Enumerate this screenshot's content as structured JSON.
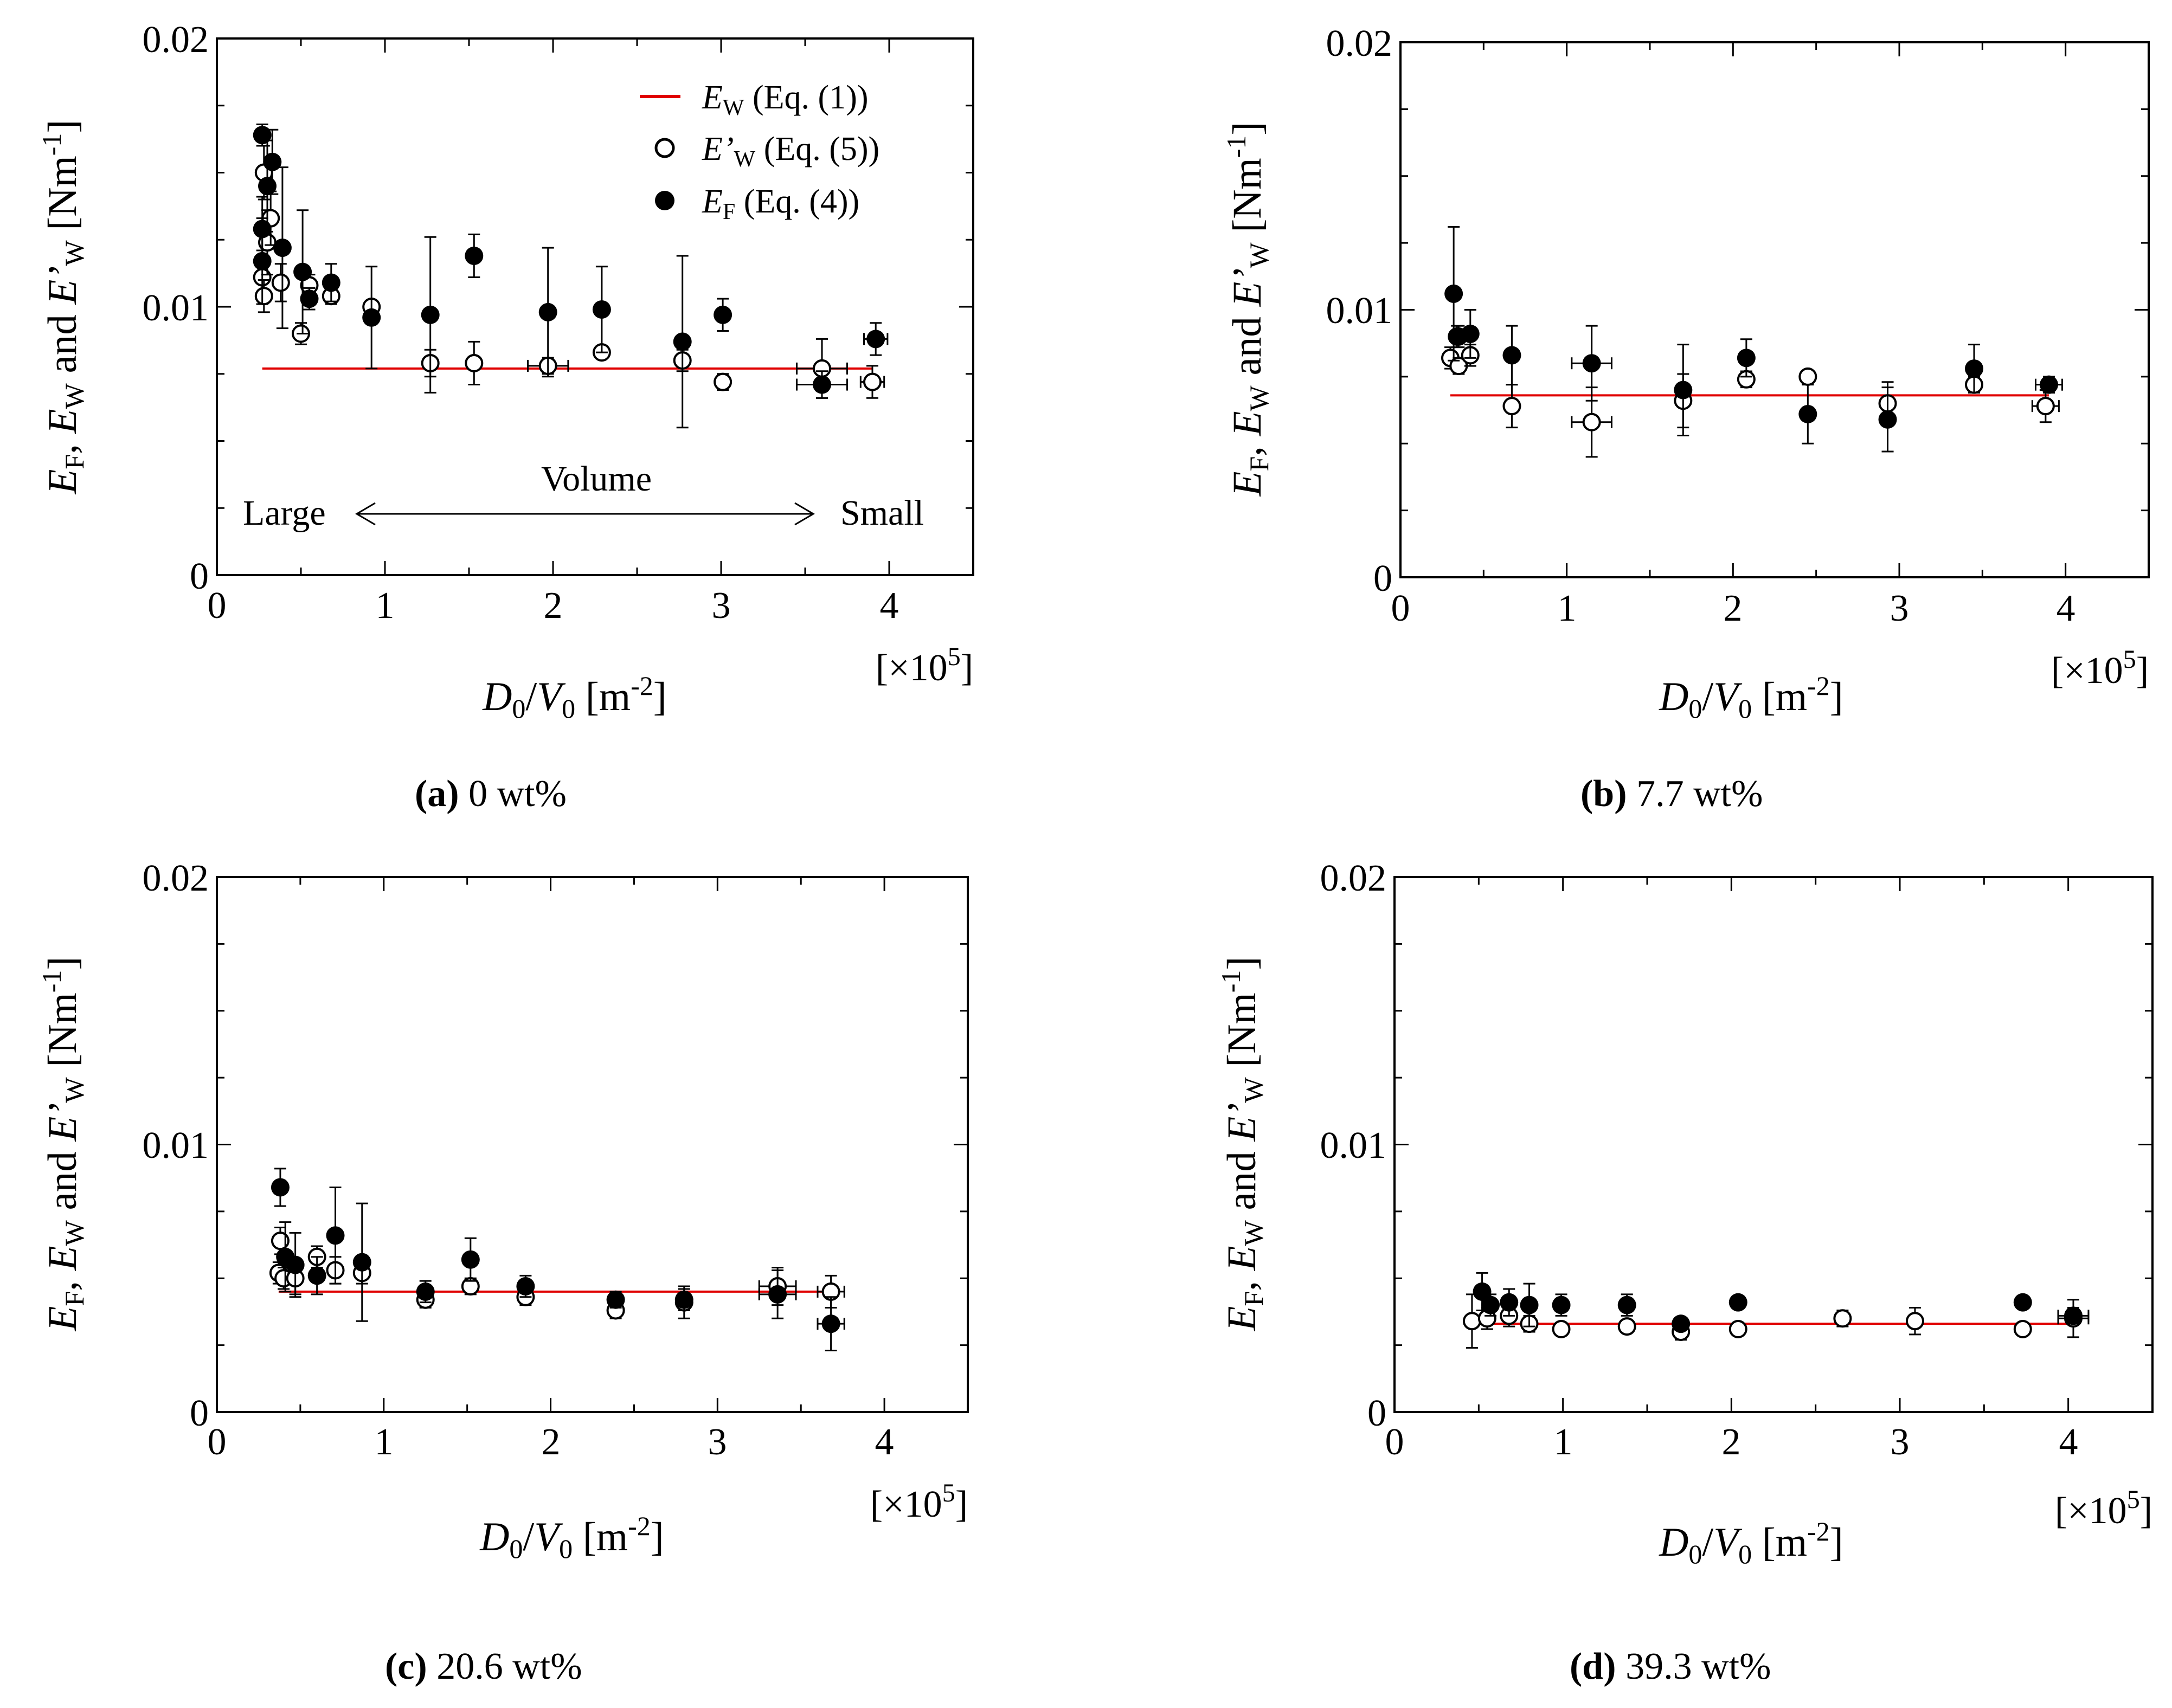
{
  "colors": {
    "model_line": "#e00000",
    "axis": "#000000",
    "marker_open_fill": "#ffffff",
    "marker_filled": "#000000"
  },
  "legend": {
    "ew": {
      "sym": "E",
      "sub": "W",
      "eq": " (Eq. (1))"
    },
    "ewp": {
      "sym": "E’",
      "sub": "W",
      "eq": " (Eq. (5))"
    },
    "ef": {
      "sym": "E",
      "sub": "F",
      "eq": " (Eq. (4))"
    }
  },
  "ylabel": {
    "ef": "E",
    "ef_sub": "F",
    "sep1": ", ",
    "ew": "E",
    "ew_sub": "W",
    "and": " and ",
    "ewp": "E’",
    "ewp_sub": "W",
    "unit_open": " [Nm",
    "unit_sup": "-1",
    "unit_close": "]"
  },
  "xlabel": {
    "d": "D",
    "d_sub": "0",
    "slash": "/",
    "v": "V",
    "v_sub": "0",
    "unit_open": " [m",
    "unit_sup": "-2",
    "unit_close": "]"
  },
  "multiplier": {
    "open": "[×10",
    "sup": "5",
    "close": "]"
  },
  "volume_annotation": {
    "large": "Large",
    "volume": "Volume",
    "small": "Small"
  },
  "captions": [
    {
      "letter": "(a)",
      "text": " 0 wt%"
    },
    {
      "letter": "(b)",
      "text": " 7.7 wt%"
    },
    {
      "letter": "(c)",
      "text": " 20.6 wt%"
    },
    {
      "letter": "(d)",
      "text": " 39.3 wt%"
    }
  ],
  "chart_data": [
    {
      "type": "scatter",
      "panel": "a",
      "title": "(a) 0 wt%",
      "xlabel": "D0/V0 [m-2]",
      "ylabel": "EF, EW and E'W [Nm-1]",
      "x_multiplier": "×10^5",
      "xlim": [
        0,
        4.5
      ],
      "ylim": [
        0,
        0.02
      ],
      "xticks": [
        0,
        1,
        2,
        3,
        4
      ],
      "xtick_labels": [
        "0",
        "1",
        "2",
        "3",
        "4"
      ],
      "yticks": [
        0,
        0.01,
        0.02
      ],
      "ytick_labels": [
        "0",
        "0.01",
        "0.02"
      ],
      "ew_line": {
        "x": [
          0.27,
          3.9
        ],
        "y": 0.0077
      },
      "series": [
        {
          "name": "E'W (Eq. (5))",
          "marker": "open",
          "points": [
            {
              "x": 0.27,
              "y": 0.0111,
              "ey": 0.001
            },
            {
              "x": 0.28,
              "y": 0.0104,
              "ey": 0.0006
            },
            {
              "x": 0.28,
              "y": 0.015,
              "ey": 0.001
            },
            {
              "x": 0.3,
              "y": 0.0124,
              "ey": 0.0012
            },
            {
              "x": 0.32,
              "y": 0.0133,
              "ey": 0.001
            },
            {
              "x": 0.38,
              "y": 0.0109,
              "ey": 0.0007
            },
            {
              "x": 0.5,
              "y": 0.009,
              "ey": 0.0004
            },
            {
              "x": 0.55,
              "y": 0.0108,
              "ey": 0.0004
            },
            {
              "x": 0.68,
              "y": 0.0104,
              "ey": 0.0003
            },
            {
              "x": 0.92,
              "y": 0.01,
              "ey": 0.0002
            },
            {
              "x": 1.27,
              "y": 0.0079,
              "ey": 0.0005
            },
            {
              "x": 1.53,
              "y": 0.0079,
              "ey": 0.0008
            },
            {
              "x": 1.97,
              "y": 0.0078,
              "ey": 0.0003,
              "ex": 0.12
            },
            {
              "x": 2.29,
              "y": 0.0083,
              "ey": 0.0002
            },
            {
              "x": 2.77,
              "y": 0.008,
              "ey": 0.0004
            },
            {
              "x": 3.01,
              "y": 0.0072,
              "ey": 0.0003
            },
            {
              "x": 3.6,
              "y": 0.0077,
              "ey": 0.0011,
              "ex": 0.15
            },
            {
              "x": 3.9,
              "y": 0.0072,
              "ey": 0.0006,
              "ex": 0.07
            }
          ]
        },
        {
          "name": "EF (Eq. (4))",
          "marker": "filled",
          "points": [
            {
              "x": 0.27,
              "y": 0.0164,
              "ey": 0.0004
            },
            {
              "x": 0.27,
              "y": 0.0129,
              "ey": 0.0012
            },
            {
              "x": 0.27,
              "y": 0.0117,
              "ey": 0.0016
            },
            {
              "x": 0.3,
              "y": 0.0145,
              "ey": 0.0017
            },
            {
              "x": 0.33,
              "y": 0.0154,
              "ey": 0.0012
            },
            {
              "x": 0.39,
              "y": 0.0122,
              "ey": 0.003
            },
            {
              "x": 0.51,
              "y": 0.0113,
              "ey": 0.0023
            },
            {
              "x": 0.55,
              "y": 0.0103,
              "ey": 0.0004
            },
            {
              "x": 0.68,
              "y": 0.0109,
              "ey": 0.0007
            },
            {
              "x": 0.92,
              "y": 0.0096,
              "ey": 0.0019
            },
            {
              "x": 1.27,
              "y": 0.0097,
              "ey": 0.0029
            },
            {
              "x": 1.53,
              "y": 0.0119,
              "ey": 0.0008
            },
            {
              "x": 1.97,
              "y": 0.0098,
              "ey": 0.0024
            },
            {
              "x": 2.29,
              "y": 0.0099,
              "ey": 0.0016
            },
            {
              "x": 2.77,
              "y": 0.0087,
              "ey": 0.0032
            },
            {
              "x": 3.01,
              "y": 0.0097,
              "ey": 0.0006
            },
            {
              "x": 3.6,
              "y": 0.0071,
              "ey": 0.0005,
              "ex": 0.15
            },
            {
              "x": 3.92,
              "y": 0.0088,
              "ey": 0.0006,
              "ex": 0.07
            }
          ]
        }
      ]
    },
    {
      "type": "scatter",
      "panel": "b",
      "title": "(b) 7.7 wt%",
      "xlabel": "D0/V0 [m-2]",
      "ylabel": "EF, EW and E'W [Nm-1]",
      "x_multiplier": "×10^5",
      "xlim": [
        0,
        4.5
      ],
      "ylim": [
        0,
        0.02
      ],
      "xticks": [
        0,
        1,
        2,
        3,
        4
      ],
      "xtick_labels": [
        "0",
        "1",
        "2",
        "3",
        "4"
      ],
      "yticks": [
        0,
        0.01,
        0.02
      ],
      "ytick_labels": [
        "0",
        "0.01",
        "0.02"
      ],
      "ew_line": {
        "x": [
          0.3,
          3.9
        ],
        "y": 0.0068
      },
      "series": [
        {
          "name": "E'W (Eq. (5))",
          "marker": "open",
          "points": [
            {
              "x": 0.3,
              "y": 0.0082,
              "ey": 0.0004
            },
            {
              "x": 0.34,
              "y": 0.009,
              "ey": 0.0004
            },
            {
              "x": 0.35,
              "y": 0.0079,
              "ey": 0.0003
            },
            {
              "x": 0.42,
              "y": 0.0083,
              "ey": 0.0004
            },
            {
              "x": 0.67,
              "y": 0.0064,
              "ey": 0.0008
            },
            {
              "x": 1.15,
              "y": 0.0058,
              "ey": 0.0013,
              "ex": 0.12
            },
            {
              "x": 1.7,
              "y": 0.0066,
              "ey": 0.001
            },
            {
              "x": 2.08,
              "y": 0.0074,
              "ey": 0.0003
            },
            {
              "x": 2.45,
              "y": 0.0075,
              "ey": 0.0002
            },
            {
              "x": 2.93,
              "y": 0.0065,
              "ey": 0.0008
            },
            {
              "x": 3.45,
              "y": 0.0072,
              "ey": 0.0003
            },
            {
              "x": 3.88,
              "y": 0.0064,
              "ey": 0.0006,
              "ex": 0.08
            }
          ]
        },
        {
          "name": "EF (Eq. (4))",
          "marker": "filled",
          "points": [
            {
              "x": 0.32,
              "y": 0.0106,
              "ey": 0.0025
            },
            {
              "x": 0.35,
              "y": 0.009,
              "ey": 0.0004
            },
            {
              "x": 0.42,
              "y": 0.0091,
              "ey": 0.0009
            },
            {
              "x": 0.67,
              "y": 0.0083,
              "ey": 0.0011
            },
            {
              "x": 1.15,
              "y": 0.008,
              "ey": 0.0014,
              "ex": 0.12
            },
            {
              "x": 1.7,
              "y": 0.007,
              "ey": 0.0017
            },
            {
              "x": 2.08,
              "y": 0.0082,
              "ey": 0.0007
            },
            {
              "x": 2.45,
              "y": 0.0061,
              "ey": 0.0011
            },
            {
              "x": 2.93,
              "y": 0.0059,
              "ey": 0.0012
            },
            {
              "x": 3.45,
              "y": 0.0078,
              "ey": 0.0009
            },
            {
              "x": 3.9,
              "y": 0.0072,
              "ey": 0.0003,
              "ex": 0.08
            }
          ]
        }
      ]
    },
    {
      "type": "scatter",
      "panel": "c",
      "title": "(c) 20.6 wt%",
      "xlabel": "D0/V0 [m-2]",
      "ylabel": "EF, EW and E'W [Nm-1]",
      "x_multiplier": "×10^5",
      "xlim": [
        0,
        4.5
      ],
      "ylim": [
        0,
        0.02
      ],
      "xticks": [
        0,
        1,
        2,
        3,
        4
      ],
      "xtick_labels": [
        "0",
        "1",
        "2",
        "3",
        "4"
      ],
      "yticks": [
        0,
        0.01,
        0.02
      ],
      "ytick_labels": [
        "0",
        "0.01",
        "0.02"
      ],
      "ew_line": {
        "x": [
          0.37,
          3.68
        ],
        "y": 0.0045
      },
      "series": [
        {
          "name": "E'W (Eq. (5))",
          "marker": "open",
          "points": [
            {
              "x": 0.37,
              "y": 0.0052,
              "ey": 0.0004
            },
            {
              "x": 0.38,
              "y": 0.0064,
              "ey": 0.0005
            },
            {
              "x": 0.4,
              "y": 0.005,
              "ey": 0.0004
            },
            {
              "x": 0.47,
              "y": 0.005,
              "ey": 0.0006
            },
            {
              "x": 0.6,
              "y": 0.0058,
              "ey": 0.0004
            },
            {
              "x": 0.71,
              "y": 0.0053,
              "ey": 0.0005
            },
            {
              "x": 0.87,
              "y": 0.0052,
              "ey": 0.0004
            },
            {
              "x": 1.25,
              "y": 0.0042,
              "ey": 0.0003
            },
            {
              "x": 1.52,
              "y": 0.0047,
              "ey": 0.0003
            },
            {
              "x": 1.85,
              "y": 0.0043,
              "ey": 0.0003
            },
            {
              "x": 2.39,
              "y": 0.0038,
              "ey": 0.0003
            },
            {
              "x": 2.8,
              "y": 0.0041,
              "ey": 0.0006
            },
            {
              "x": 3.36,
              "y": 0.0047,
              "ey": 0.0007,
              "ex": 0.11
            },
            {
              "x": 3.68,
              "y": 0.0045,
              "ey": 0.0006,
              "ex": 0.08
            }
          ]
        },
        {
          "name": "EF (Eq. (4))",
          "marker": "filled",
          "points": [
            {
              "x": 0.38,
              "y": 0.0084,
              "ey": 0.0007
            },
            {
              "x": 0.41,
              "y": 0.0058,
              "ey": 0.0013
            },
            {
              "x": 0.47,
              "y": 0.0055,
              "ey": 0.0012
            },
            {
              "x": 0.6,
              "y": 0.0051,
              "ey": 0.0007
            },
            {
              "x": 0.71,
              "y": 0.0066,
              "ey": 0.0018
            },
            {
              "x": 0.87,
              "y": 0.0056,
              "ey": 0.0022
            },
            {
              "x": 1.25,
              "y": 0.0045,
              "ey": 0.0004
            },
            {
              "x": 1.52,
              "y": 0.0057,
              "ey": 0.0008
            },
            {
              "x": 1.85,
              "y": 0.0047,
              "ey": 0.0004
            },
            {
              "x": 2.39,
              "y": 0.0042,
              "ey": 0.0003
            },
            {
              "x": 2.8,
              "y": 0.0042,
              "ey": 0.0004
            },
            {
              "x": 3.36,
              "y": 0.0044,
              "ey": 0.0009,
              "ex": 0.11
            },
            {
              "x": 3.68,
              "y": 0.0033,
              "ey": 0.001,
              "ex": 0.08
            }
          ]
        }
      ]
    },
    {
      "type": "scatter",
      "panel": "d",
      "title": "(d) 39.3 wt%",
      "xlabel": "D0/V0 [m-2]",
      "ylabel": "EF, EW and E'W [Nm-1]",
      "x_multiplier": "×10^5",
      "xlim": [
        0,
        4.5
      ],
      "ylim": [
        0,
        0.02
      ],
      "xticks": [
        0,
        1,
        2,
        3,
        4
      ],
      "xtick_labels": [
        "0",
        "1",
        "2",
        "3",
        "4"
      ],
      "yticks": [
        0,
        0.01,
        0.02
      ],
      "ytick_labels": [
        "0",
        "0.01",
        "0.02"
      ],
      "ew_line": {
        "x": [
          0.48,
          4.03
        ],
        "y": 0.0033
      },
      "series": [
        {
          "name": "E'W (Eq. (5))",
          "marker": "open",
          "points": [
            {
              "x": 0.46,
              "y": 0.0034,
              "ey": 0.001
            },
            {
              "x": 0.55,
              "y": 0.0035,
              "ey": 0.0004
            },
            {
              "x": 0.68,
              "y": 0.0036,
              "ey": 0.0004
            },
            {
              "x": 0.8,
              "y": 0.0033,
              "ey": 0.0003
            },
            {
              "x": 0.99,
              "y": 0.0031,
              "ey": 0.0002
            },
            {
              "x": 1.38,
              "y": 0.0032,
              "ey": 0.0002
            },
            {
              "x": 1.7,
              "y": 0.003,
              "ey": 0.0003
            },
            {
              "x": 2.04,
              "y": 0.0031,
              "ey": 0.0002
            },
            {
              "x": 2.66,
              "y": 0.0035,
              "ey": 0.0003
            },
            {
              "x": 3.09,
              "y": 0.0034,
              "ey": 0.0005
            },
            {
              "x": 3.73,
              "y": 0.0031,
              "ey": 0.0002
            },
            {
              "x": 4.03,
              "y": 0.0035,
              "ey": 0.0007,
              "ex": 0.09
            }
          ]
        },
        {
          "name": "EF (Eq. (4))",
          "marker": "filled",
          "points": [
            {
              "x": 0.52,
              "y": 0.0045,
              "ey": 0.0007
            },
            {
              "x": 0.57,
              "y": 0.004,
              "ey": 0.0004
            },
            {
              "x": 0.68,
              "y": 0.0041,
              "ey": 0.0005
            },
            {
              "x": 0.8,
              "y": 0.004,
              "ey": 0.0008
            },
            {
              "x": 0.99,
              "y": 0.004,
              "ey": 0.0004
            },
            {
              "x": 1.38,
              "y": 0.004,
              "ey": 0.0004
            },
            {
              "x": 1.7,
              "y": 0.0033,
              "ey": 0.0002
            },
            {
              "x": 2.04,
              "y": 0.0041,
              "ey": 0.0002
            },
            {
              "x": 3.73,
              "y": 0.0041,
              "ey": 0.0002
            },
            {
              "x": 4.03,
              "y": 0.0036,
              "ey": 0.0003,
              "ex": 0.09
            }
          ]
        }
      ]
    }
  ]
}
